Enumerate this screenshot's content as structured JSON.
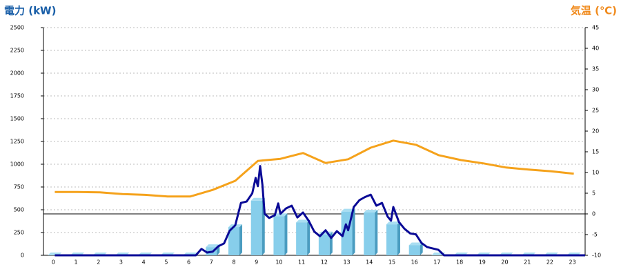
{
  "chart_data": {
    "type": "bar-line",
    "title_left": "電力 (kW)",
    "title_right": "気温 (℃)",
    "categories": [
      "0",
      "1",
      "2",
      "3",
      "4",
      "5",
      "6",
      "7",
      "8",
      "9",
      "10",
      "11",
      "12",
      "13",
      "14",
      "15",
      "16",
      "17",
      "18",
      "19",
      "20",
      "21",
      "22",
      "23"
    ],
    "ylim": [
      0,
      2500
    ],
    "yticks": [
      0,
      250,
      500,
      750,
      1000,
      1250,
      1500,
      1750,
      2000,
      2250,
      2500
    ],
    "y2lim": [
      -10,
      45
    ],
    "y2ticks": [
      -10,
      -5,
      0,
      5,
      10,
      15,
      20,
      25,
      30,
      35,
      40,
      45
    ],
    "grid": true,
    "series": [
      {
        "type": "bar",
        "color": "#87ceeb",
        "values": [
          0,
          0,
          0,
          0,
          0,
          0,
          0,
          90,
          310,
          600,
          430,
          360,
          230,
          480,
          470,
          340,
          110,
          0,
          0,
          0,
          0,
          0,
          0,
          0
        ]
      },
      {
        "type": "line",
        "axis": "y2",
        "color": "#f5a21b",
        "values": [
          5.3,
          5.3,
          5.2,
          4.8,
          4.6,
          4.2,
          4.2,
          5.8,
          8,
          12.8,
          13.3,
          14.7,
          12.3,
          13.2,
          16,
          17.7,
          16.7,
          14.2,
          13,
          12.2,
          11.2,
          10.7,
          10.3,
          9.7
        ]
      },
      {
        "type": "line",
        "color": "#0a0a96",
        "x": [
          0,
          6.25,
          6.5,
          6.75,
          7,
          7.25,
          7.5,
          7.75,
          8,
          8.25,
          8.5,
          8.75,
          8.9,
          9,
          9.1,
          9.2,
          9.3,
          9.5,
          9.75,
          9.9,
          10,
          10.25,
          10.5,
          10.75,
          11,
          11.25,
          11.5,
          11.75,
          12,
          12.25,
          12.5,
          12.75,
          12.9,
          13,
          13.25,
          13.5,
          13.75,
          14,
          14.25,
          14.5,
          14.75,
          14.9,
          15,
          15.25,
          15.5,
          15.75,
          16,
          16.25,
          16.5,
          16.75,
          17,
          17.25,
          23.5
        ],
        "values": [
          0,
          0,
          70,
          30,
          40,
          100,
          130,
          270,
          330,
          575,
          590,
          680,
          850,
          760,
          980,
          775,
          455,
          410,
          440,
          570,
          455,
          515,
          545,
          415,
          470,
          380,
          260,
          210,
          275,
          190,
          265,
          210,
          340,
          275,
          530,
          605,
          640,
          665,
          545,
          575,
          425,
          380,
          530,
          365,
          290,
          240,
          230,
          135,
          90,
          75,
          60,
          0,
          0
        ]
      }
    ]
  }
}
